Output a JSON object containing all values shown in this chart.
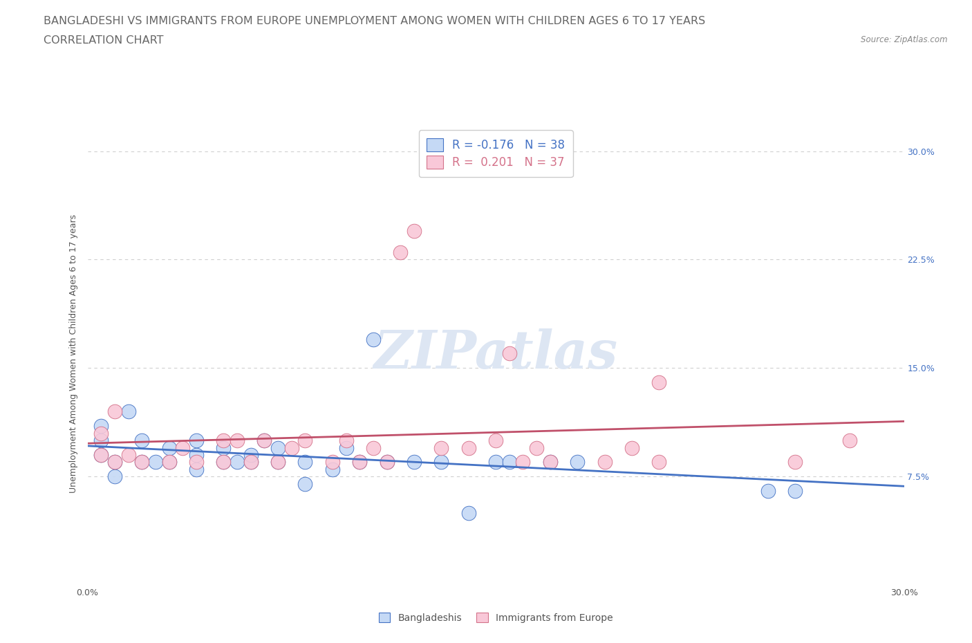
{
  "title_line1": "BANGLADESHI VS IMMIGRANTS FROM EUROPE UNEMPLOYMENT AMONG WOMEN WITH CHILDREN AGES 6 TO 17 YEARS",
  "title_line2": "CORRELATION CHART",
  "source_text": "Source: ZipAtlas.com",
  "ylabel": "Unemployment Among Women with Children Ages 6 to 17 years",
  "xlim": [
    0.0,
    0.3
  ],
  "ylim": [
    0.0,
    0.32
  ],
  "xtick_vals": [
    0.0,
    0.075,
    0.15,
    0.225,
    0.3
  ],
  "xtick_labels": [
    "0.0%",
    "",
    "",
    "",
    "30.0%"
  ],
  "ytick_vals": [
    0.075,
    0.15,
    0.225,
    0.3
  ],
  "ytick_labels_left": [
    "7.5%",
    "15.0%",
    "22.5%",
    "30.0%"
  ],
  "ytick_labels_right": [
    "7.5%",
    "15.0%",
    "22.5%",
    "30.0%"
  ],
  "blue_R": "-0.176",
  "blue_N": "38",
  "pink_R": "0.201",
  "pink_N": "37",
  "blue_fill": "#c5d9f5",
  "pink_fill": "#f9c8d8",
  "blue_edge": "#4472c4",
  "pink_edge": "#d4728a",
  "blue_trend_color": "#4472c4",
  "pink_trend_color": "#c0506a",
  "watermark_color": "#dde6f3",
  "blue_scatter_x": [
    0.005,
    0.005,
    0.005,
    0.01,
    0.01,
    0.015,
    0.02,
    0.02,
    0.025,
    0.03,
    0.03,
    0.04,
    0.04,
    0.04,
    0.05,
    0.05,
    0.055,
    0.06,
    0.06,
    0.065,
    0.07,
    0.07,
    0.08,
    0.08,
    0.09,
    0.095,
    0.1,
    0.105,
    0.11,
    0.12,
    0.13,
    0.14,
    0.15,
    0.155,
    0.17,
    0.18,
    0.25,
    0.26
  ],
  "blue_scatter_y": [
    0.09,
    0.1,
    0.11,
    0.075,
    0.085,
    0.12,
    0.085,
    0.1,
    0.085,
    0.085,
    0.095,
    0.08,
    0.09,
    0.1,
    0.085,
    0.095,
    0.085,
    0.085,
    0.09,
    0.1,
    0.085,
    0.095,
    0.07,
    0.085,
    0.08,
    0.095,
    0.085,
    0.17,
    0.085,
    0.085,
    0.085,
    0.05,
    0.085,
    0.085,
    0.085,
    0.085,
    0.065,
    0.065
  ],
  "pink_scatter_x": [
    0.005,
    0.005,
    0.01,
    0.01,
    0.015,
    0.02,
    0.03,
    0.035,
    0.04,
    0.05,
    0.05,
    0.055,
    0.06,
    0.065,
    0.07,
    0.075,
    0.08,
    0.09,
    0.095,
    0.1,
    0.105,
    0.11,
    0.115,
    0.12,
    0.13,
    0.14,
    0.15,
    0.16,
    0.165,
    0.17,
    0.19,
    0.2,
    0.21,
    0.21,
    0.155,
    0.26,
    0.28
  ],
  "pink_scatter_y": [
    0.09,
    0.105,
    0.085,
    0.12,
    0.09,
    0.085,
    0.085,
    0.095,
    0.085,
    0.085,
    0.1,
    0.1,
    0.085,
    0.1,
    0.085,
    0.095,
    0.1,
    0.085,
    0.1,
    0.085,
    0.095,
    0.085,
    0.23,
    0.245,
    0.095,
    0.095,
    0.1,
    0.085,
    0.095,
    0.085,
    0.085,
    0.095,
    0.085,
    0.14,
    0.16,
    0.085,
    0.1
  ],
  "legend_label_blue": "Bangladeshis",
  "legend_label_pink": "Immigrants from Europe",
  "title_fontsize": 11.5,
  "axis_label_fontsize": 9,
  "tick_fontsize": 9,
  "bg_color": "#ffffff",
  "grid_color": "#d0d0d0"
}
